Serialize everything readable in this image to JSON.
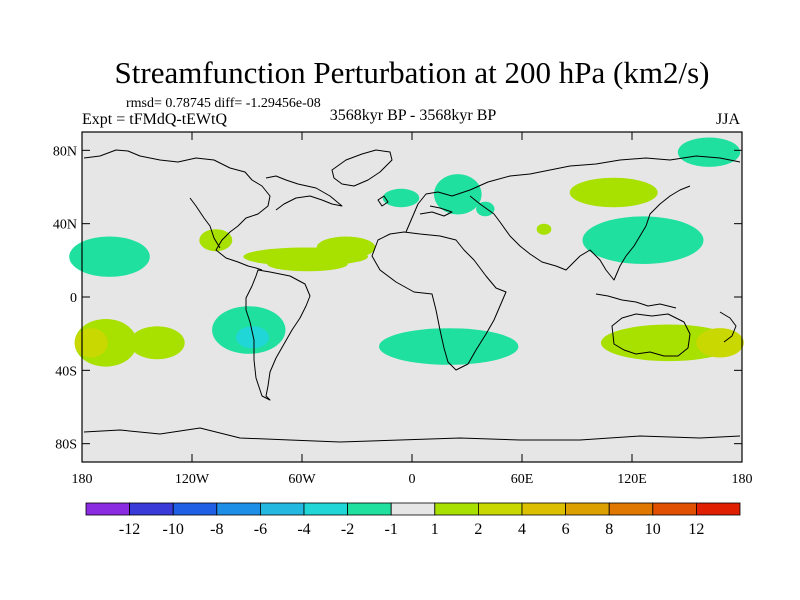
{
  "chart_data": {
    "type": "heatmap",
    "title": "Streamfunction Perturbation at 200 hPa (km2/s)",
    "stats": "rmsd= 0.78745 diff= -1.29456e-08",
    "experiment": "Expt = tFMdQ-tEWtQ",
    "period": "3568kyr BP - 3568kyr BP",
    "season": "JJA",
    "xlim": [
      -180,
      180
    ],
    "ylim": [
      -90,
      90
    ],
    "x_ticks": [
      {
        "value": -180,
        "label": "180"
      },
      {
        "value": -120,
        "label": "120W"
      },
      {
        "value": -60,
        "label": "60W"
      },
      {
        "value": 0,
        "label": "0"
      },
      {
        "value": 60,
        "label": "60E"
      },
      {
        "value": 120,
        "label": "120E"
      },
      {
        "value": 180,
        "label": "180"
      }
    ],
    "y_ticks": [
      {
        "value": 80,
        "label": "80N"
      },
      {
        "value": 40,
        "label": "40N"
      },
      {
        "value": 0,
        "label": "0"
      },
      {
        "value": -40,
        "label": "40S"
      },
      {
        "value": -80,
        "label": "80S"
      }
    ],
    "colorbar": {
      "colors": [
        "#8a2be2",
        "#3a3ad8",
        "#1f5fe6",
        "#1e8fe6",
        "#22b8e0",
        "#20d6d6",
        "#20e0a0",
        "#e6e6e6",
        "#a8e000",
        "#c8d800",
        "#dcc000",
        "#dca000",
        "#e07800",
        "#e05000",
        "#e01e00"
      ],
      "labels": [
        "-12",
        "-10",
        "-8",
        "-6",
        "-4",
        "-2",
        "-1",
        "1",
        "2",
        "4",
        "6",
        "8",
        "10",
        "12"
      ]
    },
    "regions": [
      {
        "lon": -165,
        "lat": 22,
        "rlon": 22,
        "rlat": 11,
        "level": "-1"
      },
      {
        "lon": -167,
        "lat": -25,
        "rlon": 17,
        "rlat": 13,
        "level": "2"
      },
      {
        "lon": -175,
        "lat": -25,
        "rlon": 9,
        "rlat": 8,
        "level": "4"
      },
      {
        "lon": -139,
        "lat": -25,
        "rlon": 15,
        "rlat": 9,
        "level": "2"
      },
      {
        "lon": -89,
        "lat": -18,
        "rlon": 20,
        "rlat": 13,
        "level": "-1"
      },
      {
        "lon": -87,
        "lat": -22,
        "rlon": 9,
        "rlat": 6,
        "level": "-2"
      },
      {
        "lon": -107,
        "lat": 31,
        "rlon": 9,
        "rlat": 6,
        "level": "2"
      },
      {
        "lon": -58,
        "lat": 22,
        "rlon": 34,
        "rlat": 5,
        "level": "2"
      },
      {
        "lon": -36,
        "lat": 27,
        "rlon": 16,
        "rlat": 6,
        "level": "2"
      },
      {
        "lon": -57,
        "lat": 18,
        "rlon": 22,
        "rlat": 4,
        "level": "2"
      },
      {
        "lon": -6,
        "lat": 54,
        "rlon": 10,
        "rlat": 5,
        "level": "-1"
      },
      {
        "lon": 20,
        "lat": -27,
        "rlon": 38,
        "rlat": 10,
        "level": "-1"
      },
      {
        "lon": 25,
        "lat": 56,
        "rlon": 13,
        "rlat": 11,
        "level": "-1"
      },
      {
        "lon": 40,
        "lat": 48,
        "rlon": 5,
        "rlat": 4,
        "level": "-1"
      },
      {
        "lon": 72,
        "lat": 37,
        "rlon": 4,
        "rlat": 3,
        "level": "2"
      },
      {
        "lon": 110,
        "lat": 57,
        "rlon": 24,
        "rlat": 8,
        "level": "2"
      },
      {
        "lon": 126,
        "lat": 31,
        "rlon": 33,
        "rlat": 13,
        "level": "-1"
      },
      {
        "lon": 162,
        "lat": 79,
        "rlon": 17,
        "rlat": 8,
        "level": "-1"
      },
      {
        "lon": 140,
        "lat": -25,
        "rlon": 37,
        "rlat": 10,
        "level": "2"
      },
      {
        "lon": 168,
        "lat": -25,
        "rlon": 13,
        "rlat": 8,
        "level": "4"
      }
    ]
  }
}
